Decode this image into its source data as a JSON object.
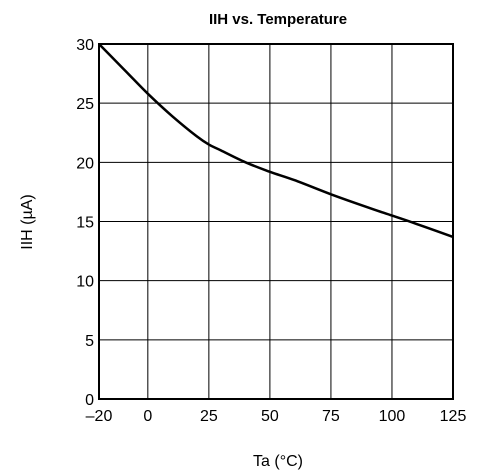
{
  "chart_data": {
    "type": "line",
    "title": "IIH vs. Temperature",
    "xlabel": "Ta (°C)",
    "ylabel": "IIH (µA)",
    "xlim": [
      -20,
      125
    ],
    "ylim": [
      0,
      30
    ],
    "x_ticks": [
      -20,
      0,
      25,
      50,
      75,
      100,
      125
    ],
    "x_tick_labels": [
      "–20",
      "0",
      "25",
      "50",
      "75",
      "100",
      "125"
    ],
    "y_ticks": [
      0,
      5,
      10,
      15,
      20,
      25,
      30
    ],
    "y_tick_labels": [
      "0",
      "5",
      "10",
      "15",
      "20",
      "25",
      "30"
    ],
    "grid": true,
    "series": [
      {
        "x": [
          -20,
          -10,
          0,
          10,
          20,
          25,
          30,
          40,
          50,
          60,
          75,
          90,
          100,
          110,
          125
        ],
        "y": [
          30,
          27.9,
          25.8,
          23.9,
          22.2,
          21.5,
          21.0,
          20.0,
          19.2,
          18.5,
          17.3,
          16.2,
          15.5,
          14.8,
          13.7
        ]
      }
    ],
    "colors": {
      "line": "#000000",
      "grid": "#000000",
      "frame": "#000000"
    }
  }
}
